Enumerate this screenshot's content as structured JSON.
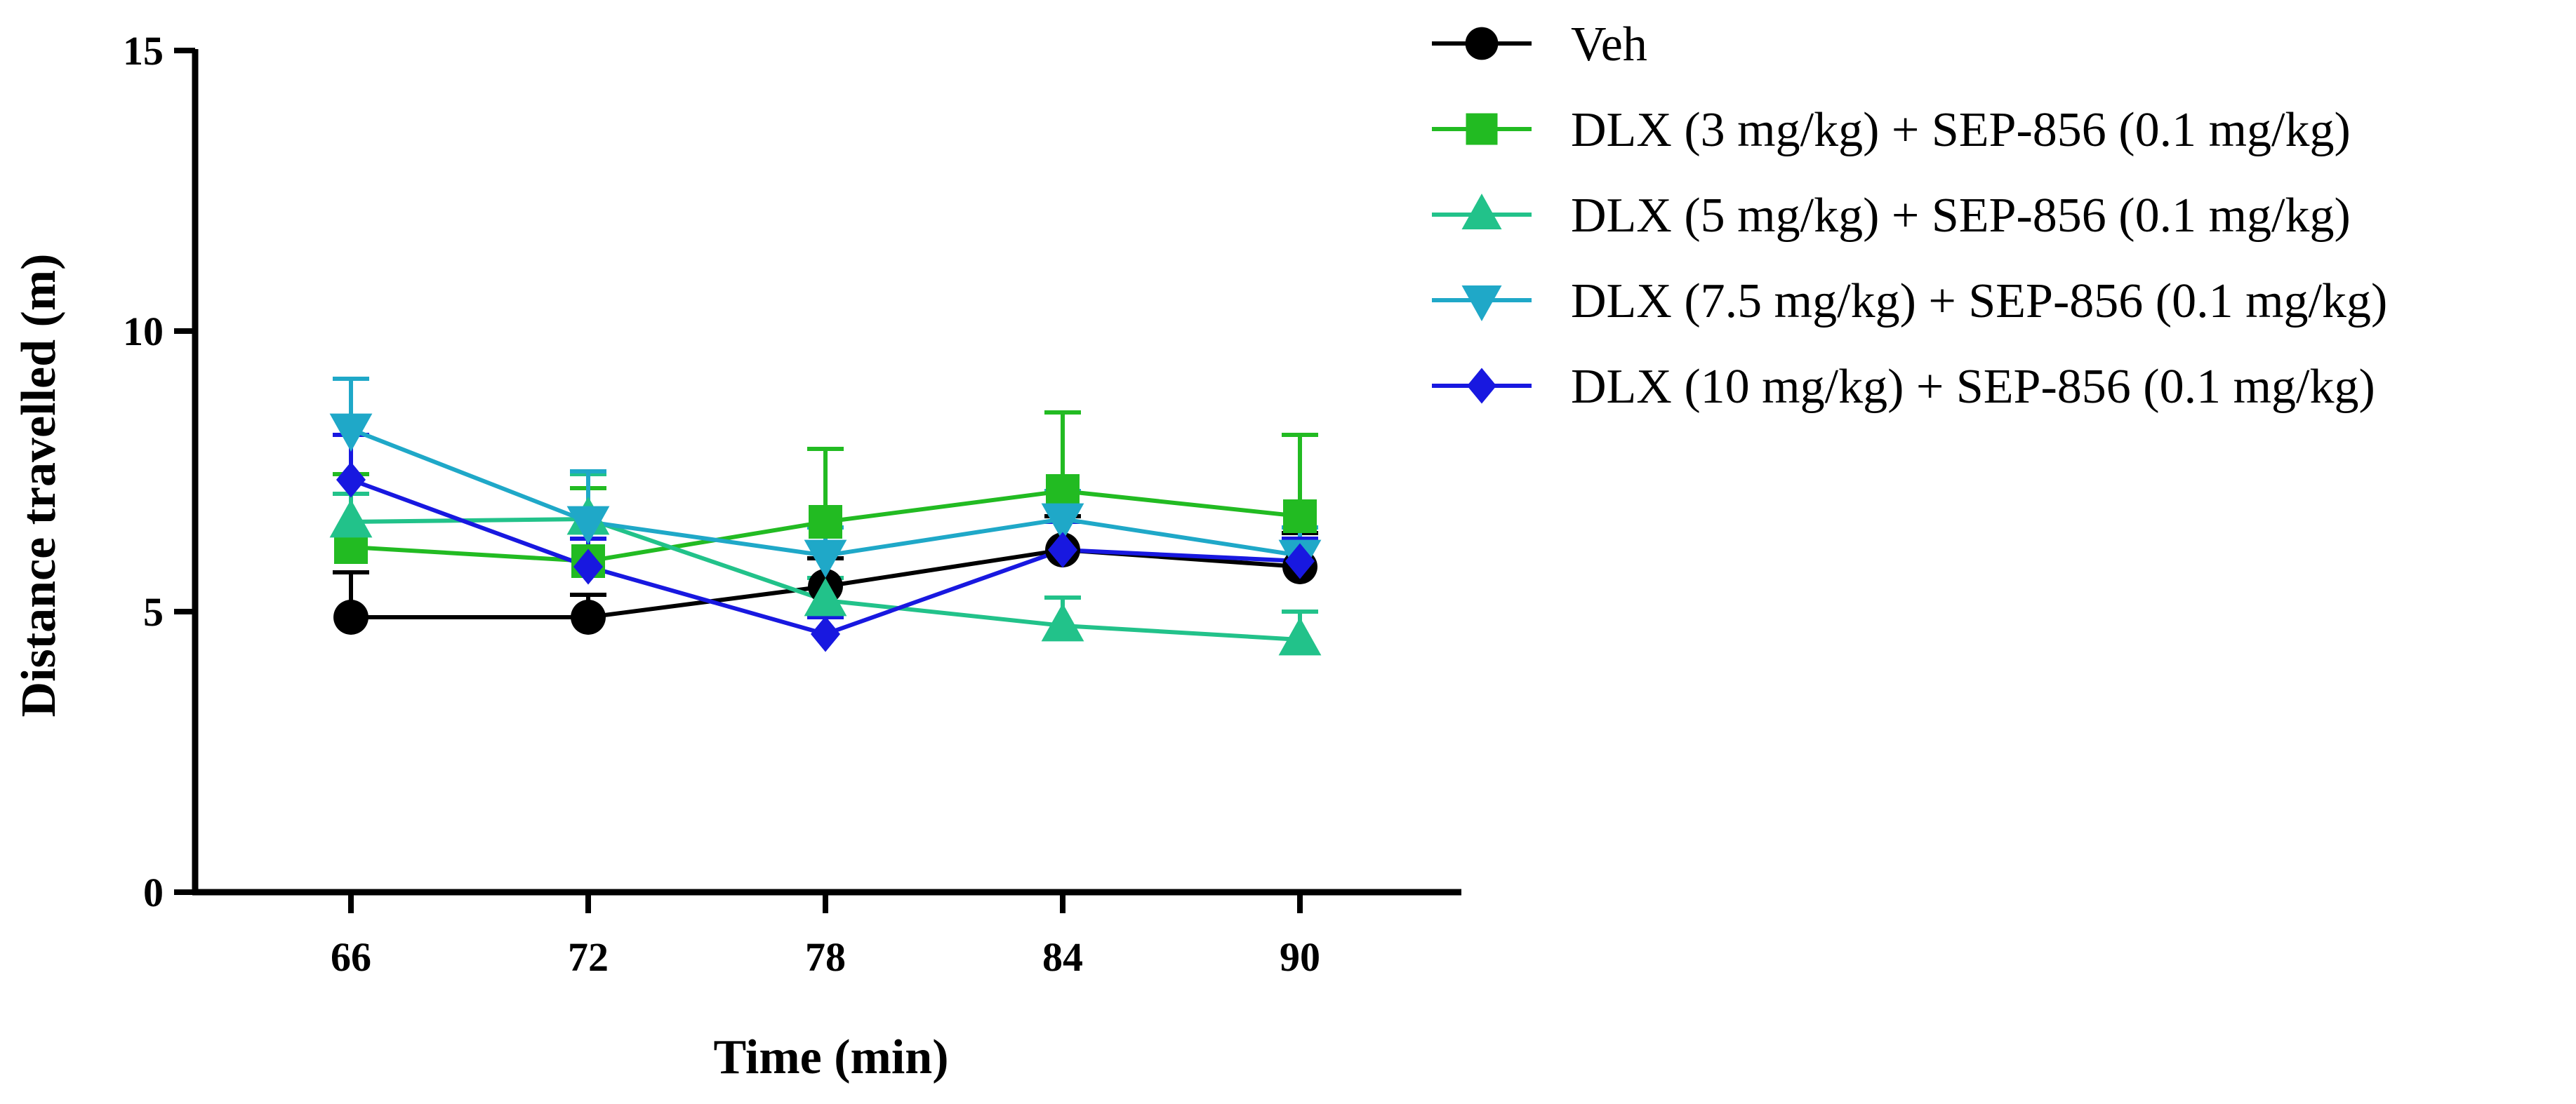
{
  "chart_data": {
    "type": "line",
    "title": "",
    "xlabel": "Time (min)",
    "ylabel": "Distance travelled (m)",
    "x": [
      66,
      72,
      78,
      84,
      90
    ],
    "x_tick_labels": [
      "66",
      "72",
      "78",
      "84",
      "90"
    ],
    "ylim": [
      0,
      15
    ],
    "y_ticks": [
      0,
      5,
      10,
      15
    ],
    "y_tick_labels": [
      "0",
      "5",
      "10",
      "15"
    ],
    "grid": false,
    "legend_position": "right",
    "series": [
      {
        "name": "Veh",
        "color": "#000000",
        "marker": "circle",
        "values": [
          4.9,
          4.9,
          5.45,
          6.1,
          5.8
        ],
        "error": [
          0.8,
          0.4,
          0.5,
          0.6,
          0.6
        ]
      },
      {
        "name": "DLX (3 mg/kg) + SEP-856 (0.1 mg/kg)",
        "color": "#22bb22",
        "marker": "square",
        "values": [
          6.15,
          5.9,
          6.6,
          7.15,
          6.7
        ],
        "error": [
          1.3,
          1.3,
          1.3,
          1.4,
          1.45
        ]
      },
      {
        "name": "DLX (5 mg/kg) + SEP-856 (0.1 mg/kg)",
        "color": "#22c28a",
        "marker": "triangle-up",
        "values": [
          6.6,
          6.65,
          5.2,
          4.75,
          4.5
        ],
        "error": [
          0.5,
          0.8,
          0.4,
          0.5,
          0.5
        ]
      },
      {
        "name": "DLX (7.5 mg/kg) + SEP-856 (0.1 mg/kg)",
        "color": "#1fa8c8",
        "marker": "triangle-down",
        "values": [
          8.25,
          6.6,
          6.0,
          6.65,
          6.0
        ],
        "error": [
          0.9,
          0.9,
          0.5,
          0.5,
          0.5
        ]
      },
      {
        "name": "DLX (10 mg/kg) + SEP-856 (0.1 mg/kg)",
        "color": "#1818e0",
        "marker": "diamond",
        "values": [
          7.35,
          5.8,
          4.6,
          6.1,
          5.9
        ],
        "error": [
          0.8,
          0.5,
          0.3,
          0.5,
          0.4
        ]
      }
    ]
  }
}
